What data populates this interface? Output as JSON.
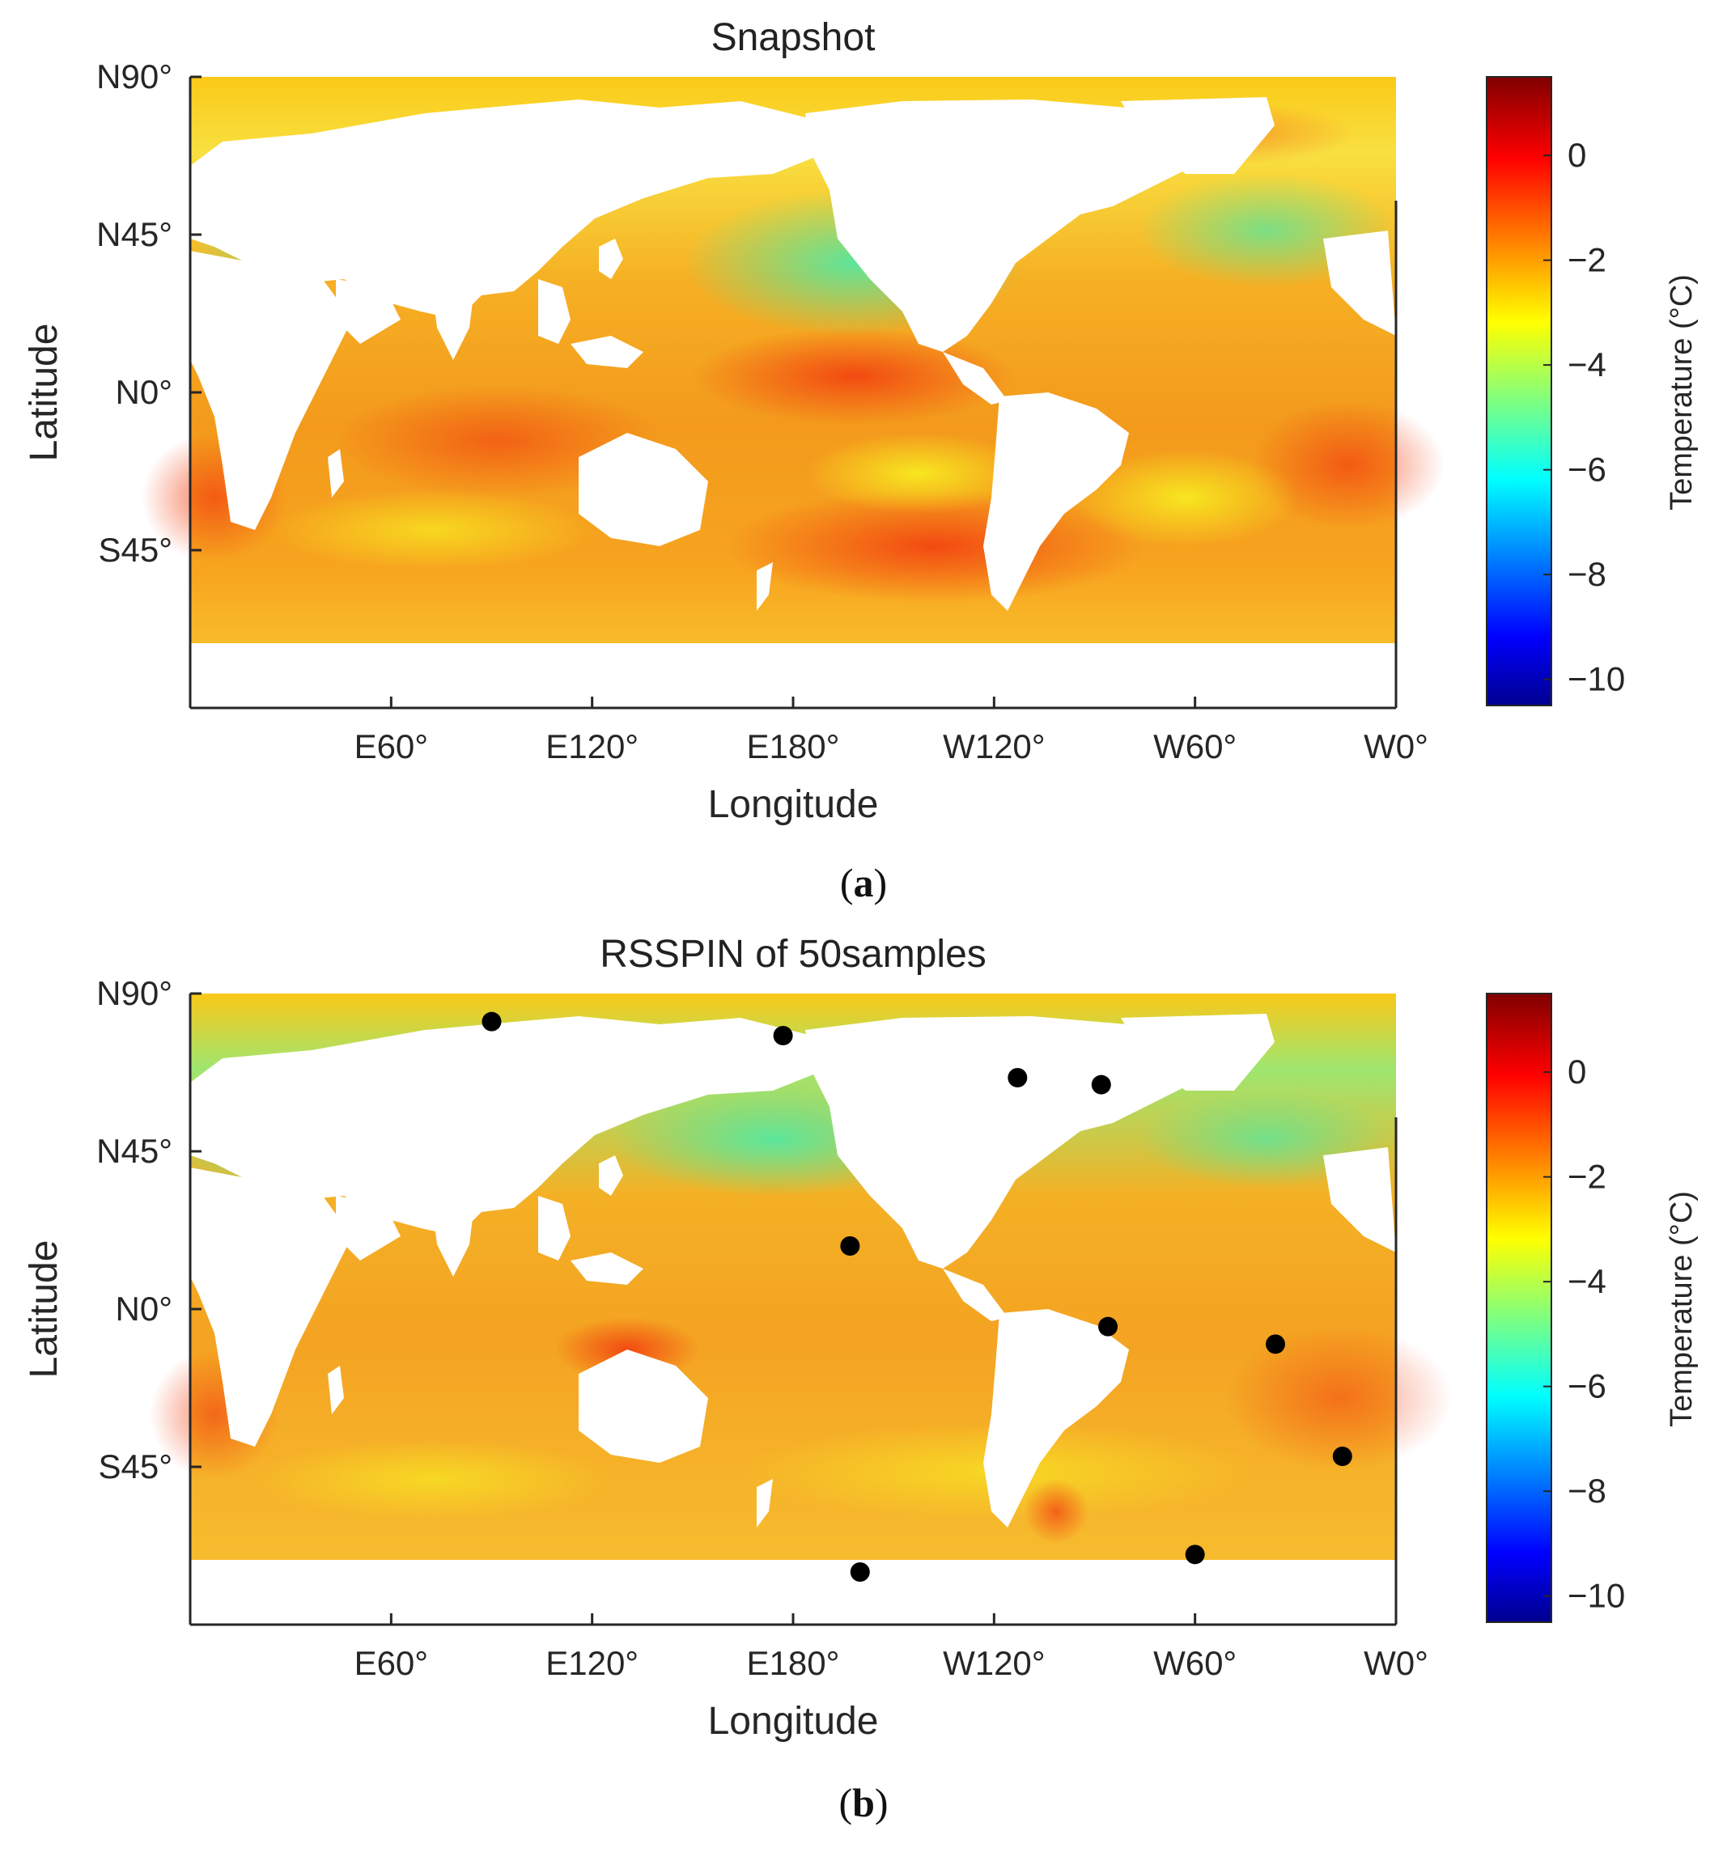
{
  "chart_data": [
    {
      "type": "heatmap",
      "panel_label": "a",
      "title": "Snapshot",
      "xlabel": "Longitude",
      "ylabel": "Latitude",
      "x_ticks": [
        "E60°",
        "E120°",
        "E180°",
        "W120°",
        "W60°",
        "W0°"
      ],
      "y_ticks": [
        "N90°",
        "N45°",
        "N0°",
        "S45°"
      ],
      "colorbar": {
        "label": "Temperature (°C)",
        "ticks": [
          0,
          -2,
          -4,
          -6,
          -8,
          -10
        ],
        "tick_labels": [
          "0",
          "−2",
          "−4",
          "−6",
          "−8",
          "−10"
        ],
        "range": [
          -10.5,
          1.5
        ],
        "colormap": "jet"
      },
      "samples": []
    },
    {
      "type": "heatmap",
      "panel_label": "b",
      "title": "RSSPIN of 50samples",
      "xlabel": "Longitude",
      "ylabel": "Latitude",
      "x_ticks": [
        "E60°",
        "E120°",
        "E180°",
        "W120°",
        "W60°",
        "W0°"
      ],
      "y_ticks": [
        "N90°",
        "N45°",
        "N0°",
        "S45°"
      ],
      "colorbar": {
        "label": "Temperature (°C)",
        "ticks": [
          0,
          -2,
          -4,
          -6,
          -8,
          -10
        ],
        "tick_labels": [
          "0",
          "−2",
          "−4",
          "−6",
          "−8",
          "−10"
        ],
        "range": [
          -10.5,
          1.5
        ],
        "colormap": "jet"
      },
      "samples": [
        {
          "lon": 90,
          "lat": 82
        },
        {
          "lon": 177,
          "lat": 78
        },
        {
          "lon": 247,
          "lat": 66
        },
        {
          "lon": 272,
          "lat": 64
        },
        {
          "lon": 197,
          "lat": 18
        },
        {
          "lon": 274,
          "lat": -5
        },
        {
          "lon": 324,
          "lat": -10
        },
        {
          "lon": 344,
          "lat": -42
        },
        {
          "lon": 300,
          "lat": -70
        },
        {
          "lon": 200,
          "lat": -75
        }
      ]
    }
  ]
}
